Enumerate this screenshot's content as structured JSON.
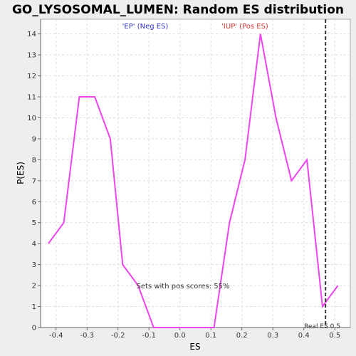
{
  "chart_data": {
    "type": "line",
    "title": "GO_LYSOSOMAL_LUMEN: Random ES distribution",
    "xlabel": "ES",
    "ylabel": "P(ES)",
    "xlim": [
      -0.45,
      0.55
    ],
    "ylim": [
      0,
      14.7
    ],
    "xticks": [
      "-0.4",
      "-0.3",
      "-0.2",
      "-0.1",
      "0.0",
      "0.1",
      "0.2",
      "0.3",
      "0.4",
      "0.5"
    ],
    "xtick_values": [
      -0.4,
      -0.3,
      -0.2,
      -0.1,
      0.0,
      0.1,
      0.2,
      0.3,
      0.4,
      0.5
    ],
    "yticks": [
      "0",
      "1",
      "2",
      "3",
      "4",
      "5",
      "6",
      "7",
      "8",
      "9",
      "10",
      "11",
      "12",
      "13",
      "14"
    ],
    "ytick_values": [
      0,
      1,
      2,
      3,
      4,
      5,
      6,
      7,
      8,
      9,
      10,
      11,
      12,
      13,
      14
    ],
    "grid": true,
    "legend": [
      {
        "label": "'EP' (Neg ES)",
        "color": "#3333cc"
      },
      {
        "label": "'IUP' (Pos ES)",
        "color": "#dd3333"
      }
    ],
    "series": [
      {
        "color": "#ee44ee",
        "x": [
          -0.425,
          -0.375,
          -0.325,
          -0.275,
          -0.225,
          -0.185,
          -0.135,
          -0.085,
          -0.035,
          0.015,
          0.065,
          0.11,
          0.16,
          0.21,
          0.26,
          0.31,
          0.36,
          0.41,
          0.46,
          0.51
        ],
        "y": [
          4,
          5,
          11,
          11,
          9,
          3,
          2,
          0,
          0,
          0,
          0,
          0,
          5,
          8,
          14,
          10,
          7,
          8,
          1,
          2
        ]
      }
    ],
    "real_es": {
      "value": 0.47,
      "label": "Real ES 0.5"
    },
    "annotation": "Sets with pos scores: 55%"
  }
}
